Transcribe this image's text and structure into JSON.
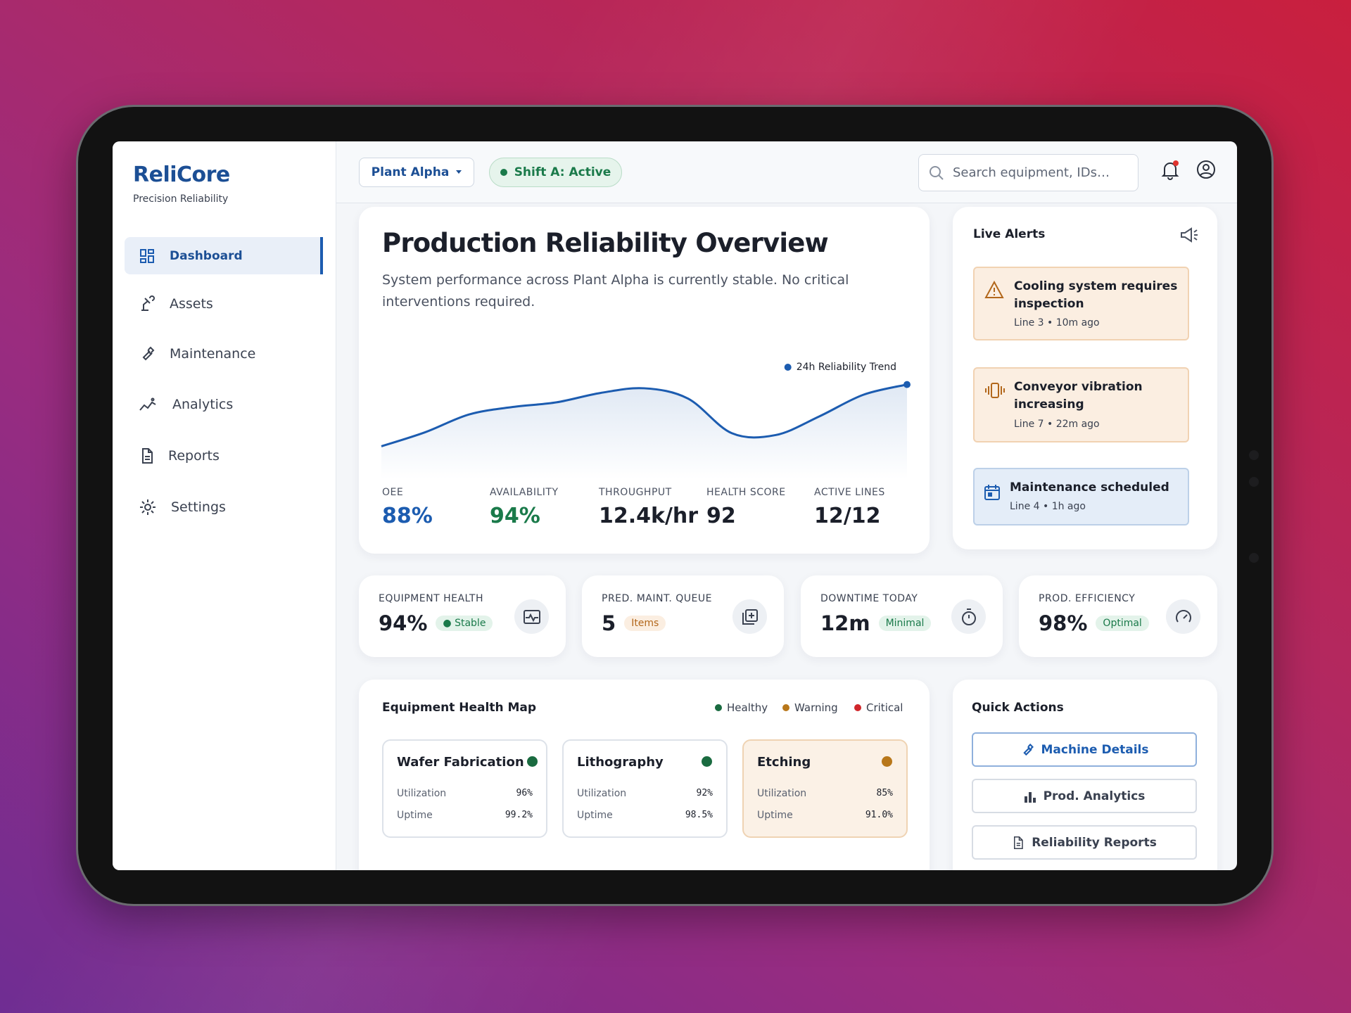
{
  "sidebar": {
    "brand": "ReliCore",
    "tagline": "Precision Reliability",
    "nav": [
      "Dashboard",
      "Assets",
      "Maintenance",
      "Analytics",
      "Reports",
      "Settings"
    ]
  },
  "topbar": {
    "plant": "Plant Alpha",
    "shift": "Shift A: Active",
    "search_placeholder": "Search equipment, IDs…"
  },
  "overview": {
    "title": "Production Reliability Overview",
    "subtitle": "System performance across Plant Alpha is currently stable. No critical interventions required.",
    "trend": {
      "label": "24h Reliability Trend",
      "values": [
        20,
        35,
        54,
        62,
        67,
        77,
        82,
        71,
        34,
        32,
        52,
        75,
        86
      ],
      "ylim": [
        0,
        100
      ]
    },
    "stats": [
      {
        "label": "OEE",
        "value": "88%"
      },
      {
        "label": "AVAILABILITY",
        "value": "94%"
      },
      {
        "label": "THROUGHPUT",
        "value": "12.4k/hr"
      },
      {
        "label": "HEALTH SCORE",
        "value": "92"
      },
      {
        "label": "ACTIVE LINES",
        "value": "12/12"
      }
    ]
  },
  "alerts": {
    "title": "Live Alerts",
    "items": [
      {
        "title": "Cooling system requires inspection",
        "meta": "Line 3 • 10m ago"
      },
      {
        "title": "Conveyor vibration increasing",
        "meta": "Line 7 • 22m ago"
      },
      {
        "title": "Maintenance scheduled",
        "meta": "Line 4 • 1h ago"
      }
    ]
  },
  "kpis": [
    {
      "label": "EQUIPMENT HEALTH",
      "value": "94%",
      "badge": "Stable"
    },
    {
      "label": "PRED. MAINT. QUEUE",
      "value": "5",
      "badge": "Items"
    },
    {
      "label": "DOWNTIME TODAY",
      "value": "12m",
      "badge": "Minimal"
    },
    {
      "label": "PROD. EFFICIENCY",
      "value": "98%",
      "badge": "Optimal"
    }
  ],
  "health_map": {
    "title": "Equipment Health Map",
    "legend": [
      "Healthy",
      "Warning",
      "Critical"
    ],
    "tiles": [
      {
        "name": "Wafer Fabrication",
        "rows": [
          {
            "label": "Utilization",
            "value": "96%"
          },
          {
            "label": "Uptime",
            "value": "99.2%"
          }
        ]
      },
      {
        "name": "Lithography",
        "rows": [
          {
            "label": "Utilization",
            "value": "92%"
          },
          {
            "label": "Uptime",
            "value": "98.5%"
          }
        ]
      },
      {
        "name": "Etching",
        "rows": [
          {
            "label": "Utilization",
            "value": "85%"
          },
          {
            "label": "Uptime",
            "value": "91.0%"
          }
        ]
      }
    ]
  },
  "quick_actions": {
    "title": "Quick Actions",
    "buttons": [
      "Machine Details",
      "Prod. Analytics",
      "Reliability Reports"
    ]
  }
}
